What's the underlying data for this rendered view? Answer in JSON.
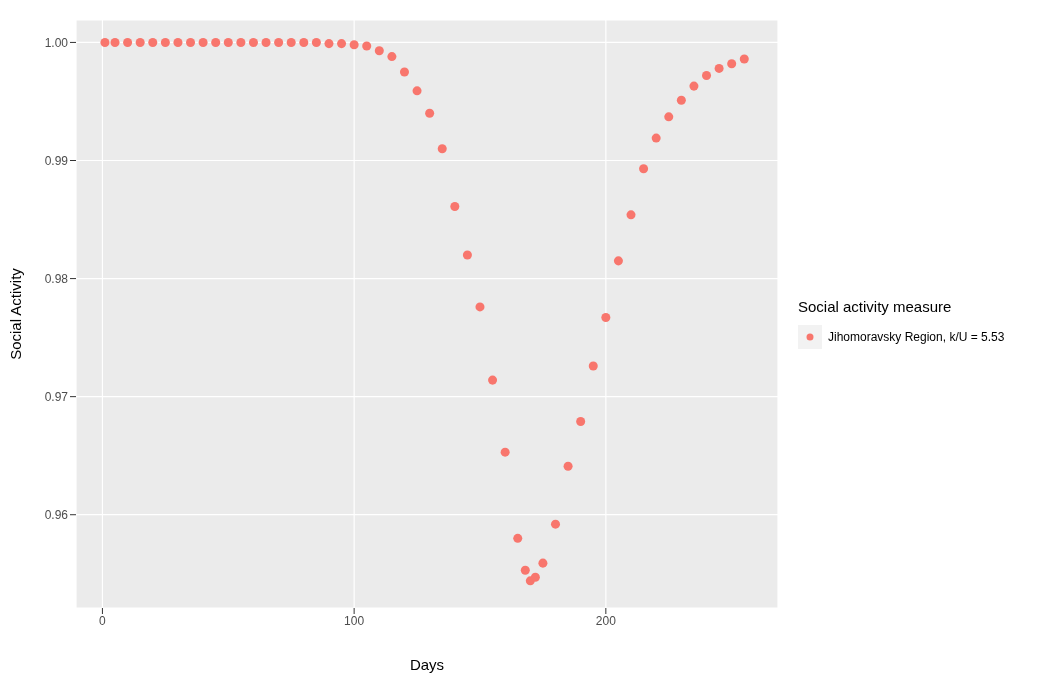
{
  "chart_data": {
    "type": "scatter",
    "xlabel": "Days",
    "ylabel": "Social Activity",
    "legend_title": "Social activity measure",
    "legend": "right",
    "grid": true,
    "marker": "circle",
    "xlim": [
      -10.5,
      268.4
    ],
    "xticks": [
      0,
      100,
      200
    ],
    "ylim": [
      0.9521,
      1.0019
    ],
    "yticks": [
      0.96,
      0.97,
      0.98,
      0.99,
      {
        "value": 1,
        "label": "1.00"
      }
    ],
    "series": [
      {
        "name": "Jihomoravsky Region, k/U = 5.53",
        "color": "#f8766d",
        "x": [
          1,
          5,
          10,
          15,
          20,
          25,
          30,
          35,
          40,
          45,
          50,
          55,
          60,
          65,
          70,
          75,
          80,
          85,
          90,
          95,
          100,
          105,
          110,
          115,
          120,
          125,
          130,
          135,
          140,
          145,
          150,
          155,
          160,
          165,
          168,
          170,
          172,
          175,
          180,
          185,
          190,
          195,
          200,
          205,
          210,
          215,
          220,
          225,
          230,
          235,
          240,
          245,
          250,
          255
        ],
        "values": [
          1,
          1,
          1,
          1,
          1,
          1,
          1,
          1,
          1,
          1,
          1,
          1,
          1,
          1,
          1,
          1,
          1,
          1,
          0.9999,
          0.9999,
          0.9998,
          0.9997,
          0.9993,
          0.9988,
          0.9975,
          0.9959,
          0.994,
          0.991,
          0.9861,
          0.982,
          0.9776,
          0.9714,
          0.9653,
          0.958,
          0.9553,
          0.9544,
          0.9547,
          0.9559,
          0.9592,
          0.9641,
          0.9679,
          0.9726,
          0.9767,
          0.9815,
          0.9854,
          0.9893,
          0.9919,
          0.9937,
          0.9951,
          0.9963,
          0.9972,
          0.9978,
          0.9982,
          0.9986
        ]
      }
    ]
  }
}
